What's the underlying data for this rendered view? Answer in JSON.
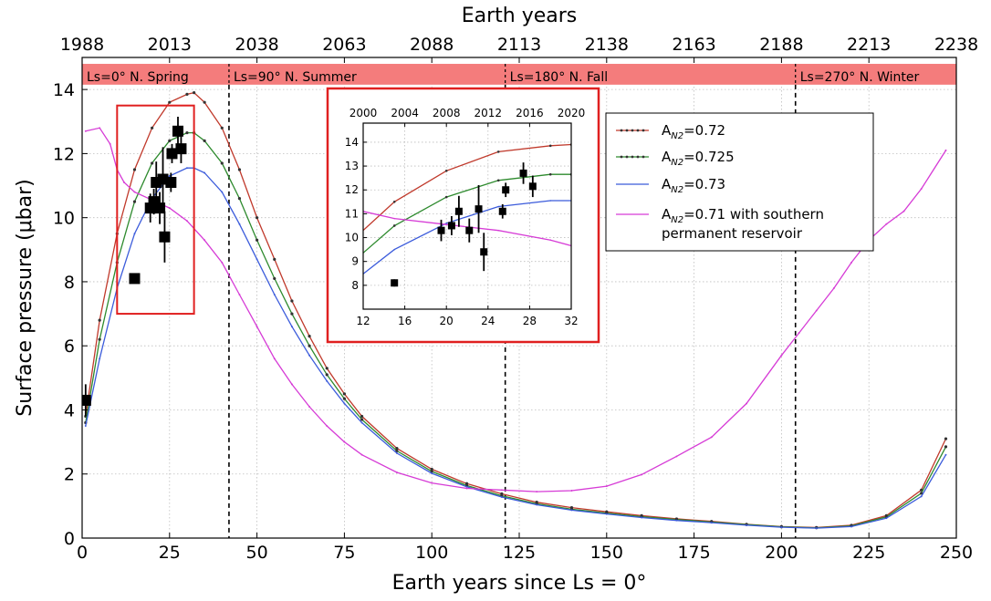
{
  "chart_data": [
    {
      "type": "line",
      "xlabel": "Earth years since Ls = 0°",
      "ylabel": "Surface pressure (μbar)",
      "top_xlabel": "Earth years",
      "xlim": [
        0,
        250
      ],
      "ylim": [
        0,
        15
      ],
      "xticks": [
        0,
        25,
        50,
        75,
        100,
        125,
        150,
        175,
        200,
        225,
        250
      ],
      "yticks": [
        0,
        2,
        4,
        6,
        8,
        10,
        12,
        14
      ],
      "top_xticks": [
        "1988",
        "2013",
        "2038",
        "2063",
        "2088",
        "2113",
        "2138",
        "2163",
        "2188",
        "2213",
        "2238"
      ],
      "grid": true,
      "legend_position": "right",
      "seasons": [
        {
          "label": "Ls=0°  N. Spring",
          "start": 0
        },
        {
          "label": "Ls=90°  N. Summer",
          "start": 42
        },
        {
          "label": "Ls=180°  N. Fall",
          "start": 121
        },
        {
          "label": "Ls=270°  N. Winter",
          "start": 204
        }
      ],
      "season_lines": [
        42,
        121,
        204
      ],
      "zoom_box": {
        "x": [
          10,
          32
        ],
        "y": [
          7,
          13.5
        ]
      },
      "series": [
        {
          "name": "A_N2=0.72",
          "legend_main": "A",
          "legend_sub": "N2",
          "legend_rest": "=0.72",
          "color": "#c0392b",
          "marker": "dot",
          "x": [
            1,
            5,
            10,
            15,
            20,
            25,
            30,
            32,
            35,
            40,
            45,
            50,
            55,
            60,
            65,
            70,
            75,
            80,
            90,
            100,
            110,
            120,
            130,
            140,
            150,
            160,
            170,
            180,
            190,
            200,
            210,
            220,
            230,
            240,
            247
          ],
          "y": [
            3.8,
            6.8,
            9.5,
            11.5,
            12.8,
            13.6,
            13.85,
            13.9,
            13.6,
            12.8,
            11.5,
            10.0,
            8.7,
            7.4,
            6.3,
            5.3,
            4.5,
            3.8,
            2.8,
            2.15,
            1.7,
            1.38,
            1.12,
            0.95,
            0.82,
            0.7,
            0.6,
            0.52,
            0.43,
            0.36,
            0.33,
            0.4,
            0.7,
            1.5,
            3.1
          ]
        },
        {
          "name": "A_N2=0.725",
          "legend_main": "A",
          "legend_sub": "N2",
          "legend_rest": "=0.725",
          "color": "#2d8a2d",
          "marker": "dot",
          "x": [
            1,
            5,
            10,
            15,
            20,
            25,
            30,
            32,
            35,
            40,
            45,
            50,
            55,
            60,
            65,
            70,
            75,
            80,
            90,
            100,
            110,
            120,
            130,
            140,
            150,
            160,
            170,
            180,
            190,
            200,
            210,
            220,
            230,
            240,
            247
          ],
          "y": [
            3.6,
            6.2,
            8.6,
            10.5,
            11.7,
            12.4,
            12.65,
            12.65,
            12.4,
            11.7,
            10.6,
            9.3,
            8.1,
            7.0,
            6.0,
            5.1,
            4.35,
            3.7,
            2.72,
            2.08,
            1.64,
            1.32,
            1.07,
            0.9,
            0.78,
            0.67,
            0.58,
            0.5,
            0.42,
            0.35,
            0.32,
            0.38,
            0.66,
            1.4,
            2.85
          ]
        },
        {
          "name": "A_N2=0.73",
          "legend_main": "A",
          "legend_sub": "N2",
          "legend_rest": "=0.73",
          "color": "#3b5bdb",
          "marker": "none",
          "x": [
            1,
            5,
            10,
            15,
            20,
            25,
            30,
            32,
            35,
            40,
            45,
            50,
            55,
            60,
            65,
            70,
            75,
            80,
            90,
            100,
            110,
            120,
            130,
            140,
            150,
            160,
            170,
            180,
            190,
            200,
            210,
            220,
            230,
            240,
            247
          ],
          "y": [
            3.5,
            5.6,
            7.8,
            9.5,
            10.6,
            11.3,
            11.55,
            11.55,
            11.4,
            10.8,
            9.8,
            8.7,
            7.6,
            6.6,
            5.7,
            4.9,
            4.2,
            3.6,
            2.65,
            2.02,
            1.6,
            1.28,
            1.04,
            0.87,
            0.75,
            0.64,
            0.55,
            0.48,
            0.4,
            0.34,
            0.31,
            0.36,
            0.62,
            1.3,
            2.6
          ]
        },
        {
          "name": "A_N2=0.71 with southern permanent reservoir",
          "legend_main": "A",
          "legend_sub": "N2",
          "legend_rest": "=0.71 with southern",
          "legend_line2": " permanent reservoir",
          "color": "#d63bd6",
          "marker": "none",
          "x": [
            1,
            5,
            8,
            10,
            12,
            15,
            20,
            25,
            30,
            35,
            40,
            45,
            50,
            55,
            60,
            65,
            70,
            75,
            80,
            90,
            100,
            110,
            120,
            130,
            140,
            150,
            160,
            170,
            180,
            190,
            200,
            205,
            210,
            215,
            220,
            225,
            230,
            235,
            240,
            247
          ],
          "y": [
            12.7,
            12.8,
            12.3,
            11.5,
            11.1,
            10.8,
            10.55,
            10.3,
            9.9,
            9.3,
            8.6,
            7.6,
            6.6,
            5.6,
            4.8,
            4.1,
            3.5,
            3.0,
            2.6,
            2.05,
            1.72,
            1.55,
            1.5,
            1.45,
            1.48,
            1.62,
            1.98,
            2.55,
            3.15,
            4.2,
            5.7,
            6.4,
            7.1,
            7.8,
            8.6,
            9.3,
            9.8,
            10.2,
            10.9,
            12.1
          ]
        }
      ],
      "observations": {
        "name": "observations",
        "x": [
          1,
          15,
          19.5,
          20.5,
          21.2,
          22.2,
          23.1,
          23.6,
          25.4,
          25.7,
          27.4,
          28.3
        ],
        "y": [
          4.3,
          8.1,
          10.3,
          10.5,
          11.1,
          10.3,
          11.2,
          9.4,
          11.1,
          12.0,
          12.7,
          12.15
        ],
        "err": [
          0.5,
          0.15,
          0.45,
          0.4,
          0.65,
          0.5,
          1.0,
          0.8,
          0.3,
          0.3,
          0.45,
          0.45
        ]
      }
    },
    {
      "type": "line",
      "role": "inset",
      "xlim": [
        12,
        32
      ],
      "ylim": [
        7,
        14.8
      ],
      "xticks": [
        12,
        16,
        20,
        24,
        28,
        32
      ],
      "yticks": [
        8,
        9,
        10,
        11,
        12,
        13,
        14
      ],
      "top_xticks": [
        "2000",
        "2004",
        "2008",
        "2012",
        "2016",
        "2020"
      ],
      "grid": true
    }
  ]
}
